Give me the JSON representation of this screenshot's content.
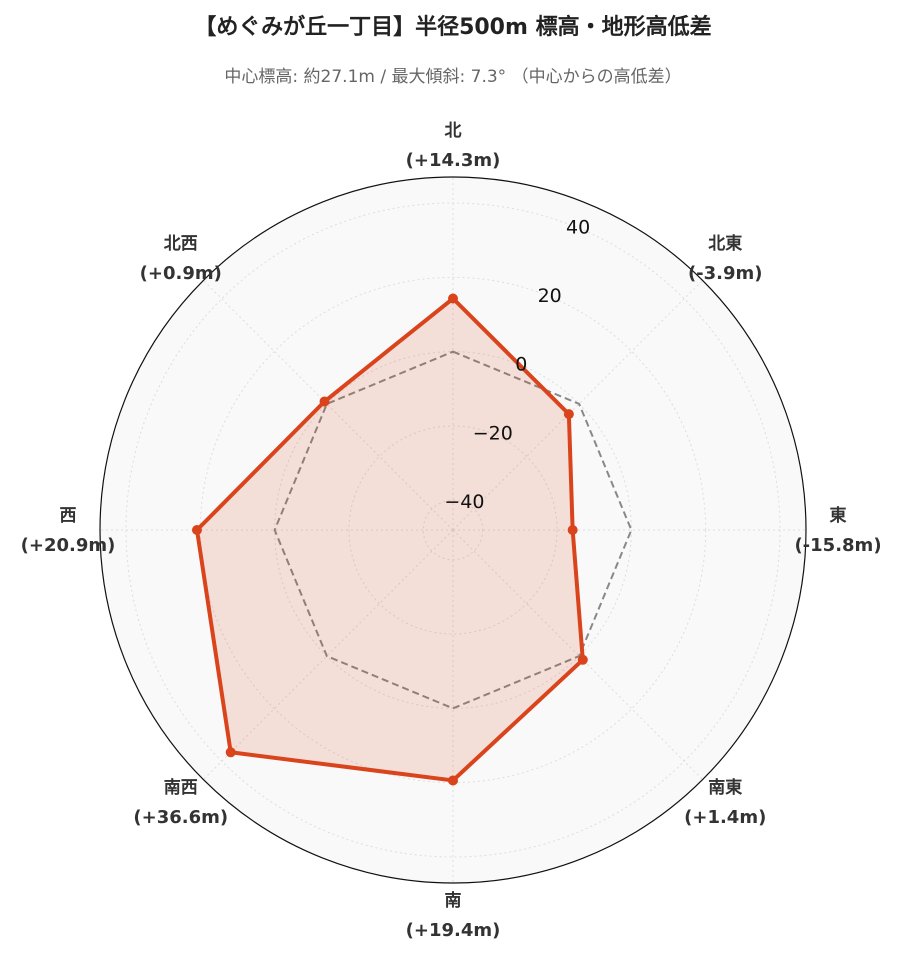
{
  "chart_data": {
    "type": "radar",
    "title": "【めぐみが丘一丁目】半径500m 標高・地形高低差",
    "subtitle": "中心標高: 約27.1m / 最大傾斜: 7.3° （中心からの高低差）",
    "categories": [
      "北",
      "北東",
      "東",
      "南東",
      "南",
      "南西",
      "西",
      "北西"
    ],
    "values": [
      14.3,
      -3.9,
      -15.8,
      1.4,
      19.4,
      36.6,
      20.9,
      0.9
    ],
    "value_labels": [
      "(+14.3m)",
      "(-3.9m)",
      "(-15.8m)",
      "(+1.4m)",
      "(+19.4m)",
      "(+36.6m)",
      "(+20.9m)",
      "(+0.9m)"
    ],
    "color": "#d9441c",
    "reference": {
      "values": [
        0,
        0,
        0,
        0,
        0,
        0,
        0,
        0
      ],
      "color": "#888888"
    },
    "ylim": [
      -48,
      47
    ],
    "yticks": [
      {
        "value": -40,
        "label": "−40"
      },
      {
        "value": -20,
        "label": "−20"
      },
      0,
      20,
      40
    ],
    "grid": true
  }
}
